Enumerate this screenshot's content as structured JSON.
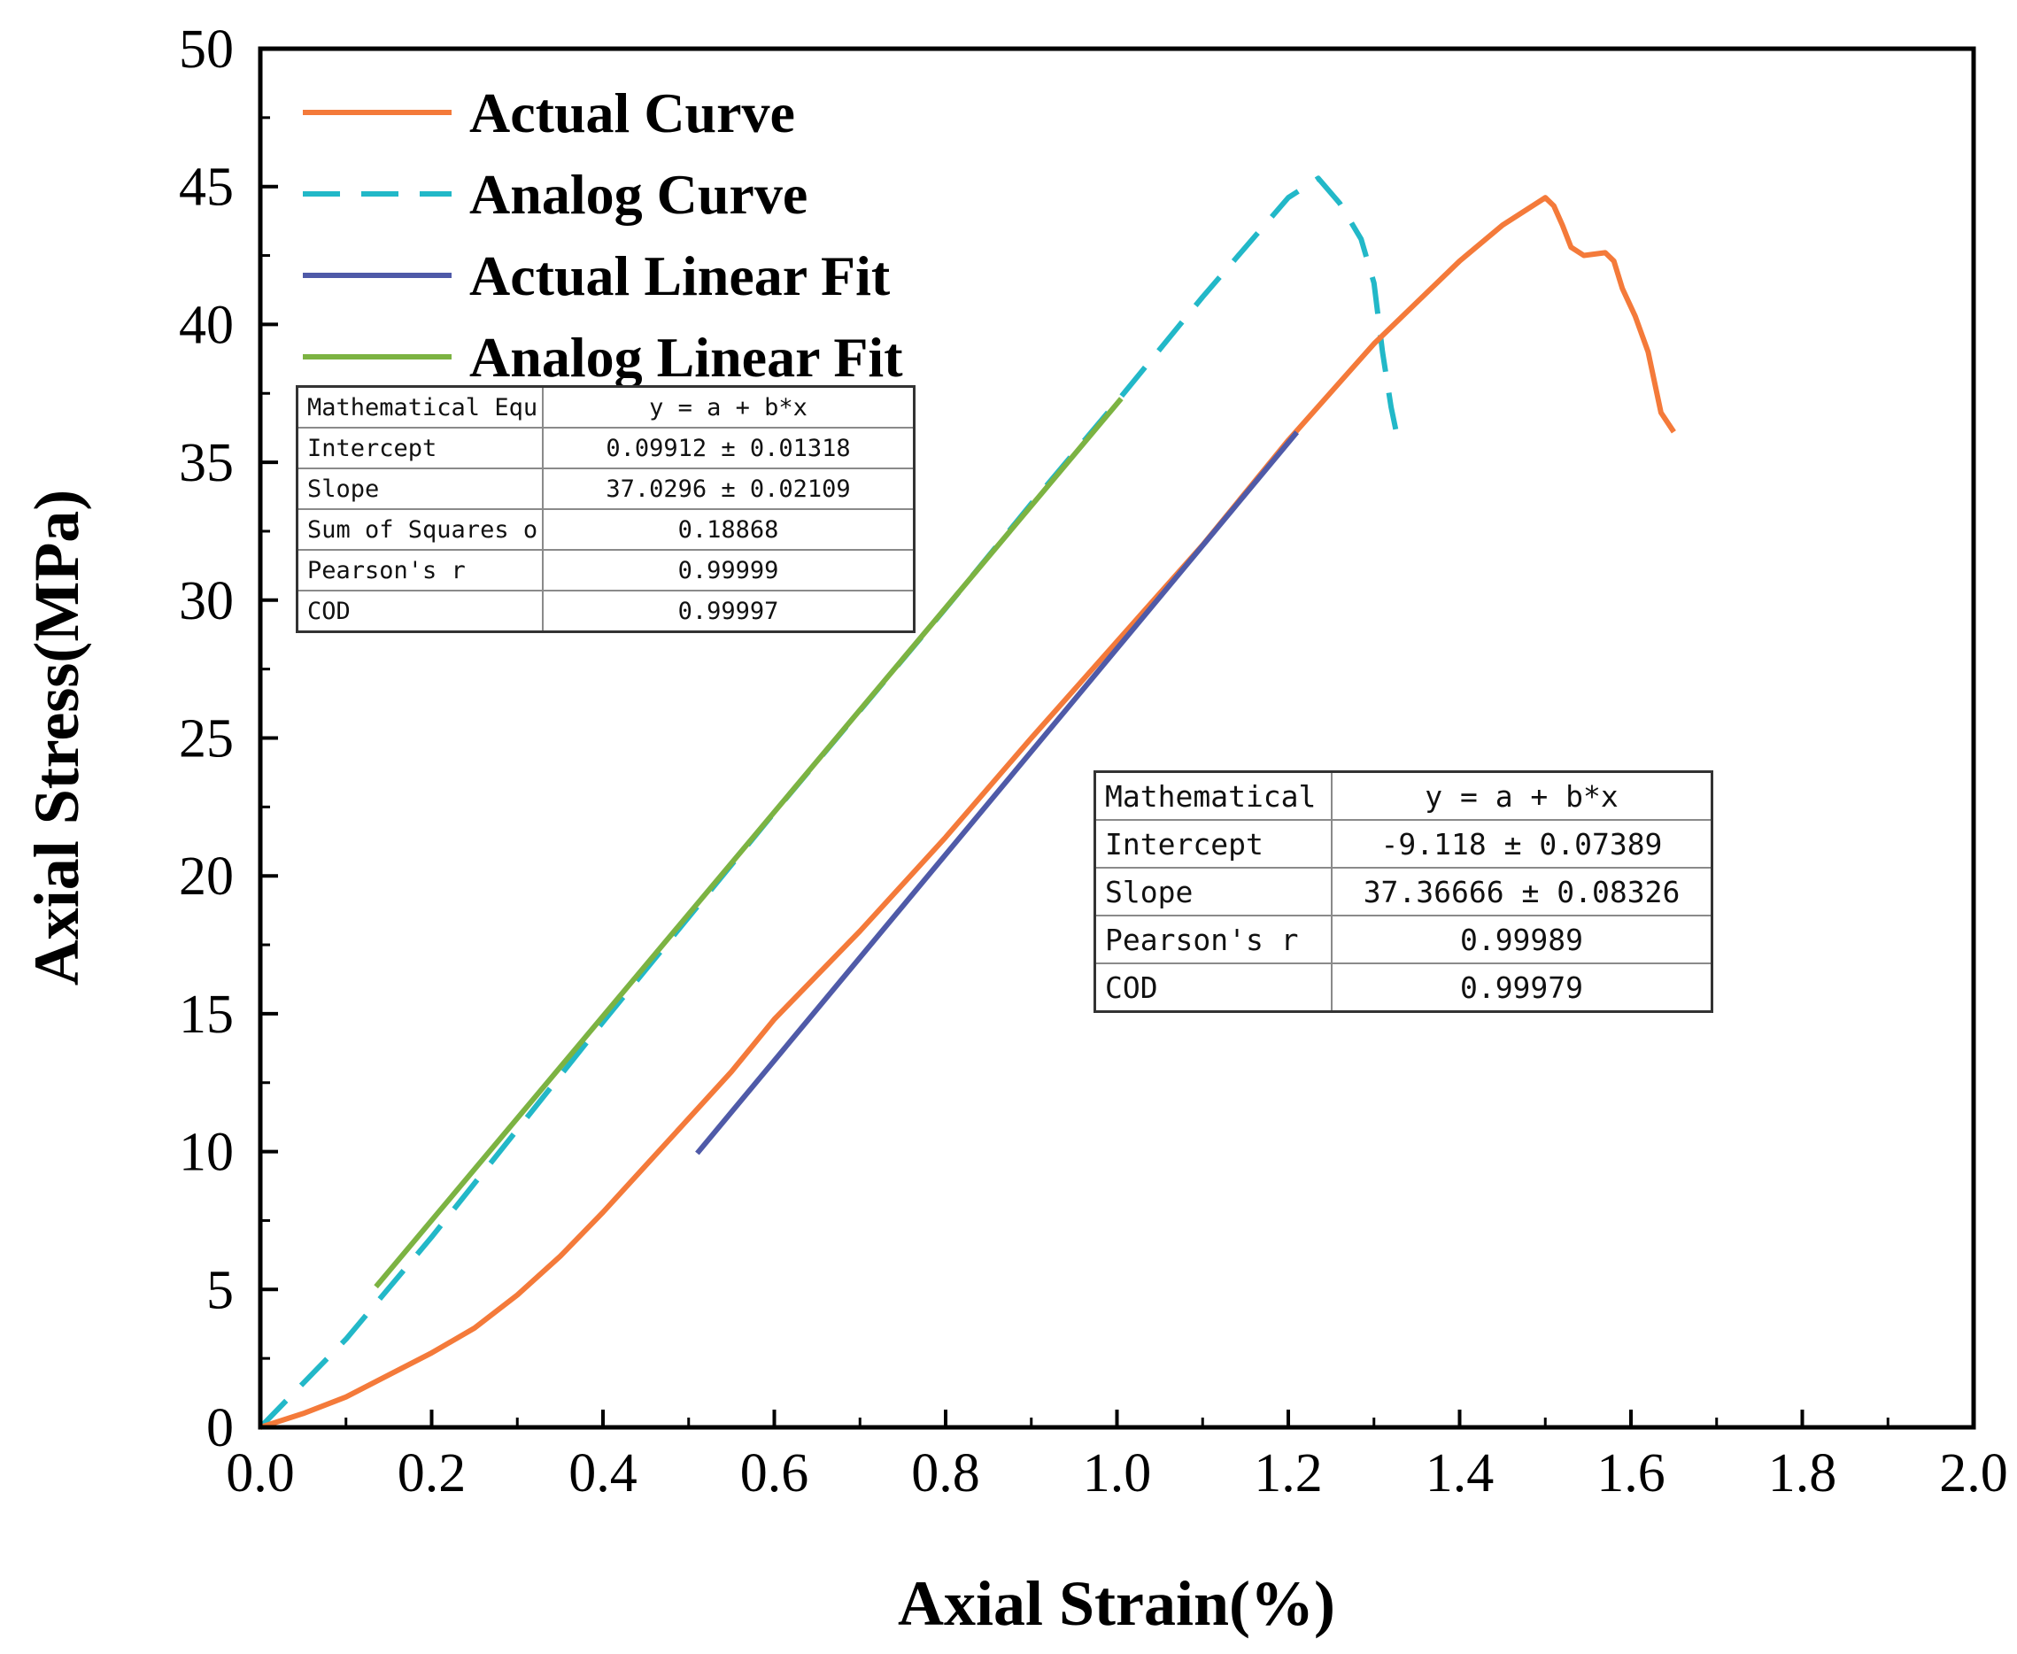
{
  "chart_data": {
    "type": "line",
    "xlabel": "Axial Strain(%)",
    "ylabel": "Axial Stress(MPa)",
    "xlim": [
      0.0,
      2.0
    ],
    "ylim": [
      0,
      50
    ],
    "xticks": [
      "0.0",
      "0.2",
      "0.4",
      "0.6",
      "0.8",
      "1.0",
      "1.2",
      "1.4",
      "1.6",
      "1.8",
      "2.0"
    ],
    "yticks": [
      "0",
      "5",
      "10",
      "15",
      "20",
      "25",
      "30",
      "35",
      "40",
      "45",
      "50"
    ],
    "grid": false,
    "legend_position": "top-left",
    "series": [
      {
        "name": "Actual Curve",
        "color": "#F47A3A",
        "style": "solid",
        "x": [
          0.0,
          0.05,
          0.1,
          0.15,
          0.2,
          0.25,
          0.3,
          0.35,
          0.4,
          0.45,
          0.5,
          0.55,
          0.6,
          0.7,
          0.8,
          0.9,
          1.0,
          1.1,
          1.2,
          1.3,
          1.35,
          1.4,
          1.45,
          1.5,
          1.51,
          1.52,
          1.53,
          1.545,
          1.57,
          1.58,
          1.59,
          1.605,
          1.62,
          1.635,
          1.65
        ],
        "y": [
          0,
          0.5,
          1.1,
          1.9,
          2.7,
          3.6,
          4.8,
          6.2,
          7.8,
          9.5,
          11.2,
          12.9,
          14.8,
          18.0,
          21.4,
          25.0,
          28.5,
          32.0,
          35.8,
          39.3,
          40.8,
          42.3,
          43.6,
          44.6,
          44.3,
          43.6,
          42.8,
          42.5,
          42.6,
          42.3,
          41.3,
          40.3,
          39.0,
          36.8,
          36.1
        ]
      },
      {
        "name": "Analog Curve",
        "color": "#22B8C8",
        "style": "dashed",
        "x": [
          0.0,
          0.1,
          0.2,
          0.3,
          0.4,
          0.5,
          0.6,
          0.7,
          0.8,
          0.9,
          1.0,
          1.1,
          1.2,
          1.235,
          1.26,
          1.285,
          1.3,
          1.31,
          1.32,
          1.33
        ],
        "y": [
          0,
          3.2,
          6.9,
          10.8,
          14.7,
          18.5,
          22.3,
          26.0,
          29.7,
          33.5,
          37.2,
          41.0,
          44.6,
          45.3,
          44.4,
          43.1,
          41.5,
          39.0,
          37.0,
          35.5
        ]
      },
      {
        "name": "Actual Linear Fit",
        "color": "#4F5AA8",
        "style": "solid",
        "x": [
          0.51,
          1.21
        ],
        "y": [
          9.94,
          36.09
        ]
      },
      {
        "name": "Analog Linear Fit",
        "color": "#7CB342",
        "style": "solid",
        "x": [
          0.135,
          1.005
        ],
        "y": [
          5.1,
          37.31
        ]
      }
    ]
  },
  "fit_tables": [
    {
      "rows": [
        {
          "label": "Mathematical Equ",
          "value": "y = a + b*x"
        },
        {
          "label": "Intercept",
          "value": "0.09912 ± 0.01318"
        },
        {
          "label": "Slope",
          "value": "37.0296 ± 0.02109"
        },
        {
          "label": "Sum of Squares o",
          "value": "0.18868"
        },
        {
          "label": "Pearson's r",
          "value": "0.99999"
        },
        {
          "label": "COD",
          "value": "0.99997"
        }
      ]
    },
    {
      "rows": [
        {
          "label": "Mathematical",
          "value": "y = a + b*x"
        },
        {
          "label": "Intercept",
          "value": "-9.118 ± 0.07389"
        },
        {
          "label": "Slope",
          "value": "37.36666 ± 0.08326"
        },
        {
          "label": "Pearson's r",
          "value": "0.99989"
        },
        {
          "label": "COD",
          "value": "0.99979"
        }
      ]
    }
  ]
}
